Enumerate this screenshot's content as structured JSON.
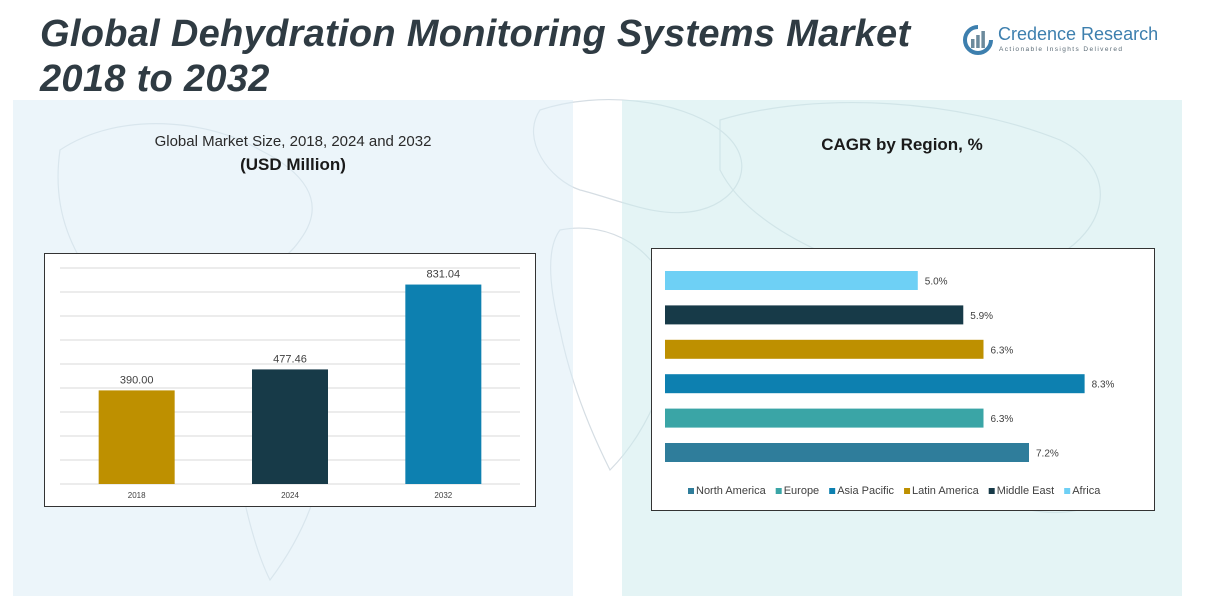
{
  "title": {
    "line1": "Global Dehydration Monitoring Systems Market",
    "line2": "2018 to 2032"
  },
  "logo": {
    "name": "Credence Research",
    "tagline": "Actionable Insights Delivered"
  },
  "left_panel": {
    "subtitle": "Global Market Size, 2018, 2024 and 2032",
    "unit": "(USD Million)"
  },
  "right_panel": {
    "title": "CAGR by Region, %"
  },
  "colors": {
    "north_america": "#2f7d9b",
    "europe": "#3aa5a6",
    "asia_pacific": "#0d80b0",
    "latin_america": "#be9000",
    "middle_east": "#173a48",
    "africa": "#6ed0f5"
  },
  "chart_data": [
    {
      "type": "bar",
      "categories": [
        "2018",
        "2024",
        "2032"
      ],
      "values": [
        390.0,
        477.46,
        831.04
      ],
      "labels": [
        "390.00",
        "477.46",
        "831.04"
      ],
      "colors": [
        "#be9000",
        "#173a48",
        "#0d80b0"
      ],
      "title": "Global Market Size, 2018, 2024 and 2032",
      "ylabel": "(USD Million)",
      "ylim": [
        0,
        900
      ],
      "grid": true
    },
    {
      "type": "bar",
      "orientation": "horizontal",
      "title": "CAGR by Region, %",
      "series": [
        {
          "name": "North America",
          "value": 7.2,
          "label": "7.2%",
          "color": "#2f7d9b"
        },
        {
          "name": "Europe",
          "value": 6.3,
          "label": "6.3%",
          "color": "#3aa5a6"
        },
        {
          "name": "Asia Pacific",
          "value": 8.3,
          "label": "8.3%",
          "color": "#0d80b0"
        },
        {
          "name": "Latin America",
          "value": 6.3,
          "label": "6.3%",
          "color": "#be9000"
        },
        {
          "name": "Middle East",
          "value": 5.9,
          "label": "5.9%",
          "color": "#173a48"
        },
        {
          "name": "Africa",
          "value": 5.0,
          "label": "5.0%",
          "color": "#6ed0f5"
        }
      ],
      "xlim": [
        0,
        9
      ],
      "legend": "bottom"
    }
  ]
}
